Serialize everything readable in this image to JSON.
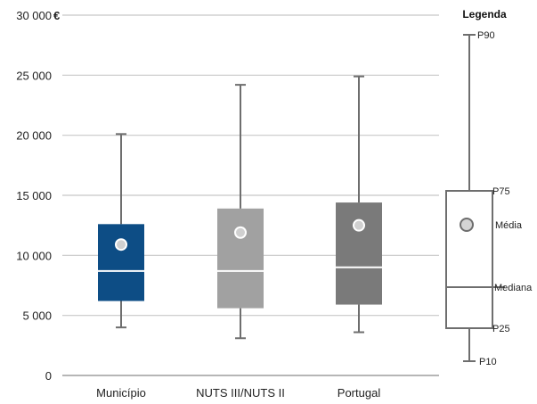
{
  "chart_data": {
    "type": "boxplot",
    "unit": "€",
    "ylim": [
      0,
      30000
    ],
    "y_ticks": [
      {
        "value": 30000,
        "label": "30 000"
      },
      {
        "value": 25000,
        "label": "25 000"
      },
      {
        "value": 20000,
        "label": "20 000"
      },
      {
        "value": 15000,
        "label": "15 000"
      },
      {
        "value": 10000,
        "label": "10 000"
      },
      {
        "value": 5000,
        "label": "5 000"
      },
      {
        "value": 0,
        "label": "0"
      }
    ],
    "grid": true,
    "categories": [
      "Município",
      "NUTS III/NUTS II",
      "Portugal"
    ],
    "series": [
      {
        "category": "Município",
        "p10": 4000,
        "p25": 6200,
        "median": 8700,
        "p75": 12600,
        "p90": 20100,
        "mean": 10900,
        "color": "#0d4d85"
      },
      {
        "category": "NUTS III/NUTS II",
        "p10": 3100,
        "p25": 5600,
        "median": 8700,
        "p75": 13900,
        "p90": 24200,
        "mean": 11900,
        "color": "#a1a1a1"
      },
      {
        "category": "Portugal",
        "p10": 3600,
        "p25": 5900,
        "median": 9000,
        "p75": 14400,
        "p90": 24900,
        "mean": 12500,
        "color": "#7a7a7a"
      }
    ],
    "legend": {
      "title": "Legenda",
      "placement": "right",
      "labels": {
        "p90": "P90",
        "p75": "P75",
        "mean": "Média",
        "median": "Mediana",
        "p25": "P25",
        "p10": "P10"
      }
    }
  }
}
